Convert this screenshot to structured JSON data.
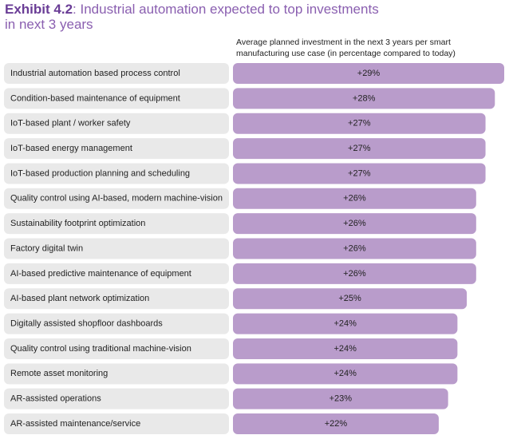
{
  "chart_data": {
    "type": "bar",
    "orientation": "horizontal",
    "title_number": "Exhibit 4.2",
    "title": ": Industrial automation expected to top investments in next 3 years",
    "x_label": "Average planned investment in the next 3 years per smart manufacturing use case (in percentage compared to today)",
    "categories": [
      "Industrial automation based process control",
      "Condition-based maintenance of equipment",
      "IoT-based plant / worker safety",
      "IoT-based energy management",
      "IoT-based production planning and scheduling",
      "Quality control using AI-based, modern machine-vision",
      "Sustainability footprint optimization",
      "Factory digital twin",
      "AI-based predictive maintenance of equipment",
      "AI-based plant network optimization",
      "Digitally assisted shopfloor dashboards",
      "Quality control using traditional machine-vision",
      "Remote asset monitoring",
      "AR-assisted operations",
      "AR-assisted maintenance/service"
    ],
    "values": [
      29,
      28,
      27,
      27,
      27,
      26,
      26,
      26,
      26,
      25,
      24,
      24,
      24,
      23,
      22
    ],
    "value_labels": [
      "+29%",
      "+28%",
      "+27%",
      "+27%",
      "+27%",
      "+26%",
      "+26%",
      "+26%",
      "+26%",
      "+25%",
      "+24%",
      "+24%",
      "+24%",
      "+23%",
      "+22%"
    ],
    "color": "#b99ccb",
    "label_box_color": "#e9e9e9"
  }
}
